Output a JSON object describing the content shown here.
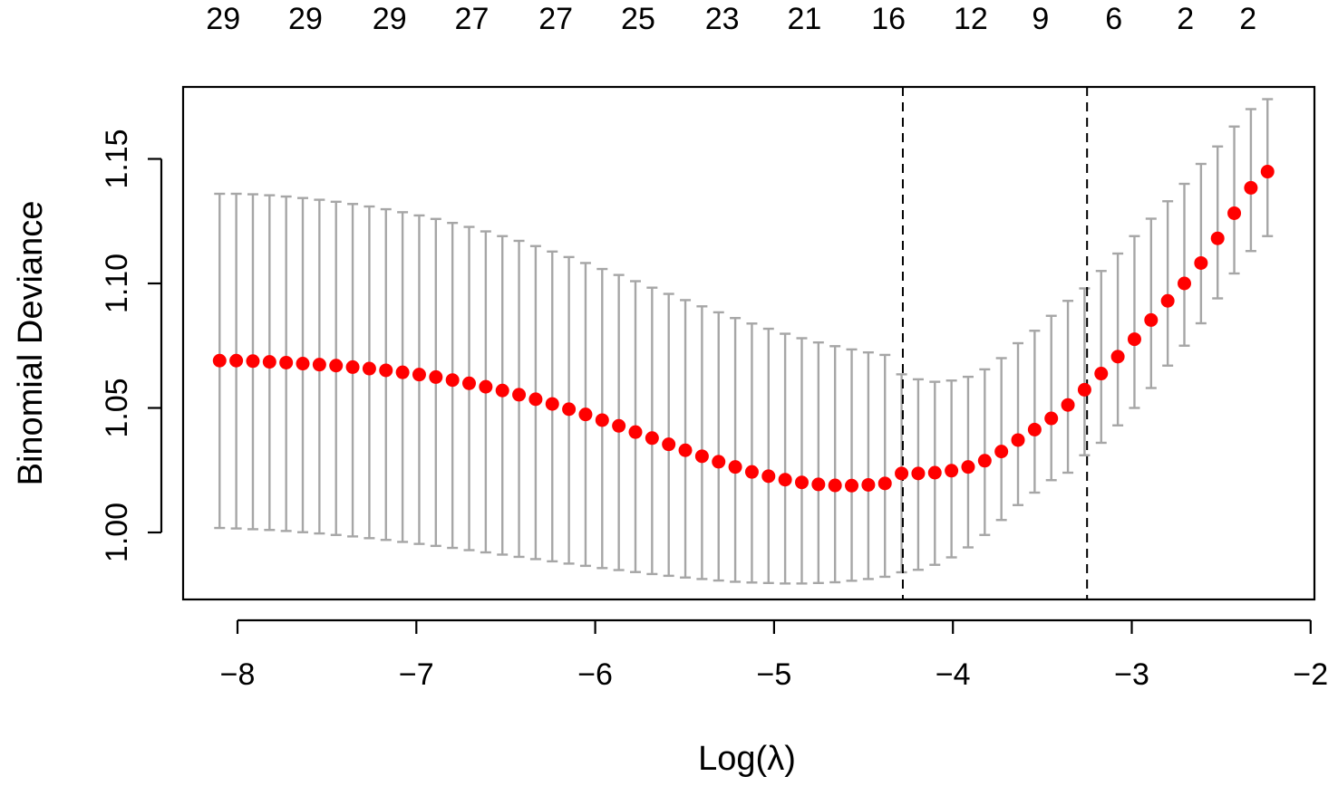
{
  "chart_data": {
    "type": "scatter",
    "title": "",
    "xlabel": "Log(λ)",
    "ylabel": "Binomial Deviance",
    "xlim": [
      -8.2,
      -2.0
    ],
    "ylim": [
      0.973,
      1.178
    ],
    "x_ticks": [
      {
        "value": -8,
        "label": "−8"
      },
      {
        "value": -7,
        "label": "−7"
      },
      {
        "value": -6,
        "label": "−6"
      },
      {
        "value": -5,
        "label": "−5"
      },
      {
        "value": -4,
        "label": "−4"
      },
      {
        "value": -3,
        "label": "−3"
      },
      {
        "value": -2,
        "label": "−2"
      }
    ],
    "y_ticks": [
      {
        "value": 1.0,
        "label": "1.00"
      },
      {
        "value": 1.05,
        "label": "1.05"
      },
      {
        "value": 1.1,
        "label": "1.10"
      },
      {
        "value": 1.15,
        "label": "1.15"
      }
    ],
    "top_axis": [
      {
        "x": -8.08,
        "label": "29"
      },
      {
        "x": -7.62,
        "label": "29"
      },
      {
        "x": -7.15,
        "label": "29"
      },
      {
        "x": -6.69,
        "label": "27"
      },
      {
        "x": -6.22,
        "label": "27"
      },
      {
        "x": -5.76,
        "label": "25"
      },
      {
        "x": -5.29,
        "label": "23"
      },
      {
        "x": -4.83,
        "label": "21"
      },
      {
        "x": -4.36,
        "label": "16"
      },
      {
        "x": -3.9,
        "label": "12"
      },
      {
        "x": -3.51,
        "label": "9"
      },
      {
        "x": -3.1,
        "label": "6"
      },
      {
        "x": -2.7,
        "label": "2"
      },
      {
        "x": -2.35,
        "label": "2"
      }
    ],
    "vlines": [
      -4.28,
      -3.25
    ],
    "colors": {
      "points": "#ff0000",
      "error_bars": "#a6a6a6",
      "vlines": "#000000"
    },
    "series": [
      {
        "x": [
          -8.1,
          -8.007,
          -7.914,
          -7.821,
          -7.728,
          -7.635,
          -7.542,
          -7.449,
          -7.356,
          -7.263,
          -7.17,
          -7.077,
          -6.984,
          -6.891,
          -6.798,
          -6.705,
          -6.612,
          -6.519,
          -6.426,
          -6.333,
          -6.24,
          -6.147,
          -6.054,
          -5.961,
          -5.868,
          -5.775,
          -5.682,
          -5.589,
          -5.496,
          -5.403,
          -5.31,
          -5.217,
          -5.124,
          -5.031,
          -4.938,
          -4.845,
          -4.752,
          -4.659,
          -4.566,
          -4.473,
          -4.38,
          -4.287,
          -4.194,
          -4.101,
          -4.008,
          -3.915,
          -3.822,
          -3.729,
          -3.636,
          -3.543,
          -3.45,
          -3.357,
          -3.264,
          -3.171,
          -3.078,
          -2.985,
          -2.892,
          -2.799,
          -2.706,
          -2.613,
          -2.52,
          -2.427,
          -2.334,
          -2.241
        ],
        "y": [
          1.069,
          1.069,
          1.0688,
          1.0685,
          1.0682,
          1.0678,
          1.0674,
          1.067,
          1.0664,
          1.0658,
          1.0651,
          1.0643,
          1.0634,
          1.0624,
          1.0612,
          1.0599,
          1.0585,
          1.057,
          1.0553,
          1.0535,
          1.0516,
          1.0495,
          1.0474,
          1.0451,
          1.0428,
          1.0403,
          1.0379,
          1.0354,
          1.033,
          1.0306,
          1.0284,
          1.0263,
          1.0243,
          1.0226,
          1.0212,
          1.0201,
          1.0193,
          1.0189,
          1.0188,
          1.0191,
          1.0197,
          1.0237,
          1.0237,
          1.024,
          1.0248,
          1.0263,
          1.0288,
          1.0325,
          1.0371,
          1.0413,
          1.0458,
          1.0512,
          1.0573,
          1.0638,
          1.0706,
          1.0776,
          1.0853,
          1.093,
          1.1,
          1.1082,
          1.1181,
          1.1282,
          1.1384,
          1.1449
        ],
        "lo": [
          1.0018,
          1.0016,
          1.0013,
          1.001,
          1.0006,
          1.0001,
          0.9996,
          0.999,
          0.9984,
          0.9977,
          0.997,
          0.9962,
          0.9954,
          0.9946,
          0.9938,
          0.9929,
          0.992,
          0.9911,
          0.9902,
          0.9893,
          0.9884,
          0.9875,
          0.9866,
          0.9857,
          0.9849,
          0.9841,
          0.9833,
          0.9826,
          0.9819,
          0.9813,
          0.9807,
          0.9802,
          0.9799,
          0.9797,
          0.9795,
          0.9795,
          0.9797,
          0.98,
          0.9806,
          0.9813,
          0.9822,
          0.984,
          0.985,
          0.987,
          0.99,
          0.994,
          0.999,
          1.005,
          1.011,
          1.016,
          1.021,
          1.024,
          1.031,
          1.036,
          1.043,
          1.05,
          1.058,
          1.067,
          1.075,
          1.084,
          1.094,
          1.104,
          1.113,
          1.119
        ],
        "hi": [
          1.136,
          1.136,
          1.1358,
          1.1354,
          1.1349,
          1.1343,
          1.1336,
          1.1328,
          1.1319,
          1.1309,
          1.1298,
          1.1286,
          1.1273,
          1.1259,
          1.1243,
          1.1227,
          1.1209,
          1.119,
          1.1171,
          1.115,
          1.1128,
          1.1106,
          1.1082,
          1.1058,
          1.1034,
          1.1009,
          1.0983,
          1.0958,
          1.0933,
          1.0908,
          1.0884,
          1.0861,
          1.0839,
          1.0818,
          1.0798,
          1.078,
          1.0763,
          1.0748,
          1.0735,
          1.0723,
          1.0713,
          1.0635,
          1.0615,
          1.0605,
          1.061,
          1.0625,
          1.0655,
          1.07,
          1.076,
          1.081,
          1.087,
          1.093,
          1.098,
          1.105,
          1.112,
          1.119,
          1.126,
          1.133,
          1.14,
          1.148,
          1.155,
          1.163,
          1.17,
          1.174
        ]
      }
    ]
  }
}
